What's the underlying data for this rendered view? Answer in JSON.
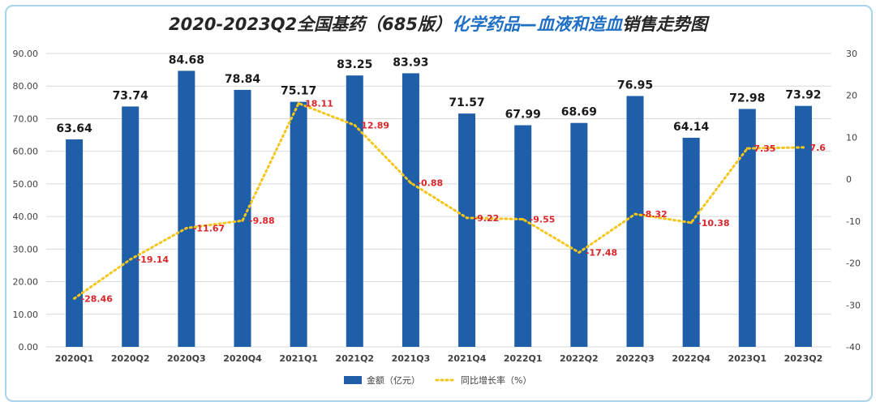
{
  "title": {
    "part1": "2020-2023Q2全国基药（685版）",
    "part2": "化学药品—血液和造血",
    "part3": "销售走势图"
  },
  "chart_data": {
    "type": "bar",
    "categories": [
      "2020Q1",
      "2020Q2",
      "2020Q3",
      "2020Q4",
      "2021Q1",
      "2021Q2",
      "2021Q3",
      "2021Q4",
      "2022Q1",
      "2022Q2",
      "2022Q3",
      "2022Q4",
      "2023Q1",
      "2023Q2"
    ],
    "series": [
      {
        "name": "金额（亿元）",
        "type": "bar",
        "axis": "left",
        "color": "#1f5ea8",
        "values": [
          63.64,
          73.74,
          84.68,
          78.84,
          75.17,
          83.25,
          83.93,
          71.57,
          67.99,
          68.69,
          76.95,
          64.14,
          72.98,
          73.92
        ],
        "labels": [
          "63.64",
          "73.74",
          "84.68",
          "78.84",
          "75.17",
          "83.25",
          "83.93",
          "71.57",
          "67.99",
          "68.69",
          "76.95",
          "64.14",
          "72.98",
          "73.92"
        ]
      },
      {
        "name": "同比增长率（%）",
        "type": "line",
        "axis": "right",
        "style": "dotted",
        "color": "#f5c518",
        "values": [
          -28.46,
          -19.14,
          -11.67,
          -9.88,
          18.11,
          12.89,
          -0.88,
          -9.22,
          -9.55,
          -17.48,
          -8.32,
          -10.38,
          7.35,
          7.6
        ],
        "labels": [
          "-28.46",
          "-19.14",
          "-11.67",
          "-9.88",
          "18.11",
          "12.89",
          "-0.88",
          "-9.22",
          "-9.55",
          "-17.48",
          "-8.32",
          "-10.38",
          "7.35",
          "7.6"
        ]
      }
    ],
    "left_axis": {
      "min": 0,
      "max": 90,
      "step": 10,
      "decimals": 2
    },
    "right_axis": {
      "min": -40,
      "max": 30,
      "step": 10
    },
    "grid": true,
    "legend": "bottom-center"
  }
}
